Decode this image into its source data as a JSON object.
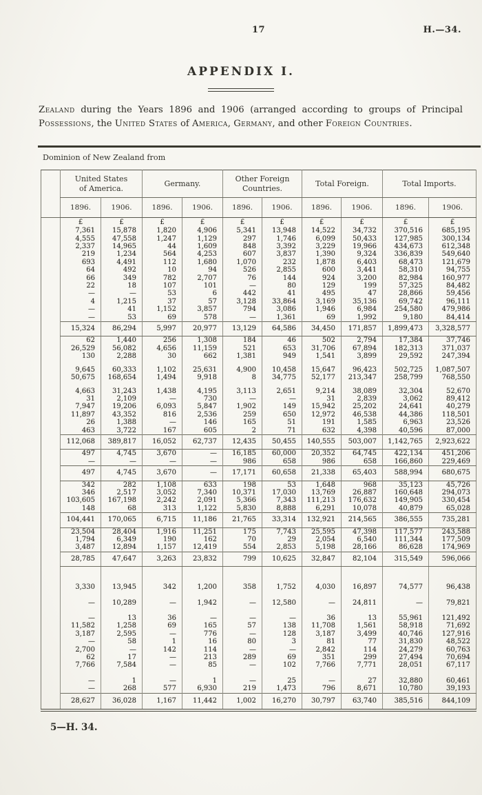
{
  "page": {
    "page_number": "17",
    "doc_ref": "H.—34.",
    "appendix_title": "APPENDIX I.",
    "footer": "5—H. 34."
  },
  "intro": {
    "segments": [
      {
        "t": "Zealand",
        "sc": true
      },
      {
        "t": " during the Years 1896 and 1906 (arranged according to groups of Principal ",
        "sc": false
      },
      {
        "t": "Possessions",
        "sc": true
      },
      {
        "t": ", the ",
        "sc": false
      },
      {
        "t": "United States",
        "sc": true
      },
      {
        "t": " of ",
        "sc": false
      },
      {
        "t": "America",
        "sc": true
      },
      {
        "t": ", ",
        "sc": false
      },
      {
        "t": "Germany",
        "sc": true
      },
      {
        "t": ", and other ",
        "sc": false
      },
      {
        "t": "Foreign Countries",
        "sc": true
      },
      {
        "t": ".",
        "sc": false
      }
    ]
  },
  "table": {
    "stub_label": "Dominion of New Zealand from",
    "groups": [
      {
        "lines": [
          "United States",
          "of America."
        ]
      },
      {
        "lines": [
          "Germany."
        ]
      },
      {
        "lines": [
          "Other Foreign",
          "Countries."
        ]
      },
      {
        "lines": [
          "Total Foreign."
        ]
      },
      {
        "lines": [
          "Total Imports."
        ]
      }
    ],
    "year_headers": [
      "1896.",
      "1906.",
      "1896.",
      "1906.",
      "1896.",
      "1906.",
      "1896.",
      "1906.",
      "1896.",
      "1906."
    ],
    "body": [
      {
        "type": "currency",
        "cells": [
          "£",
          "£",
          "£",
          "£",
          "£",
          "£",
          "£",
          "£",
          "£",
          "£"
        ]
      },
      {
        "type": "rows",
        "rows": [
          [
            "7,361",
            "15,878",
            "1,820",
            "4,906",
            "5,341",
            "13,948",
            "14,522",
            "34,732",
            "370,516",
            "685,195"
          ],
          [
            "4,555",
            "47,558",
            "1,247",
            "1,129",
            "297",
            "1,746",
            "6,099",
            "50,433",
            "127,985",
            "300,134"
          ],
          [
            "2,337",
            "14,965",
            "44",
            "1,609",
            "848",
            "3,392",
            "3,229",
            "19,966",
            "434,673",
            "612,348"
          ],
          [
            "219",
            "1,234",
            "564",
            "4,253",
            "607",
            "3,837",
            "1,390",
            "9,324",
            "336,839",
            "549,640"
          ],
          [
            "693",
            "4,491",
            "112",
            "1,680",
            "1,070",
            "232",
            "1,878",
            "6,403",
            "68,473",
            "121,679"
          ],
          [
            "64",
            "492",
            "10",
            "94",
            "526",
            "2,855",
            "600",
            "3,441",
            "58,310",
            "94,755"
          ],
          [
            "66",
            "349",
            "782",
            "2,707",
            "76",
            "144",
            "924",
            "3,200",
            "82,984",
            "160,977"
          ],
          [
            "22",
            "18",
            "107",
            "101",
            "—",
            "80",
            "129",
            "199",
            "57,325",
            "84,482"
          ],
          [
            "—",
            "—",
            "53",
            "6",
            "442",
            "41",
            "495",
            "47",
            "28,866",
            "59,456"
          ],
          [
            "4",
            "1,215",
            "37",
            "57",
            "3,128",
            "33,864",
            "3,169",
            "35,136",
            "69,742",
            "96,111"
          ],
          [
            "—",
            "41",
            "1,152",
            "3,857",
            "794",
            "3,086",
            "1,946",
            "6,984",
            "254,580",
            "479,986"
          ],
          [
            "—",
            "53",
            "69",
            "578",
            "—",
            "1,361",
            "69",
            "1,992",
            "9,180",
            "84,414"
          ]
        ]
      },
      {
        "type": "subtotal",
        "cells": [
          "15,324",
          "86,294",
          "5,997",
          "20,977",
          "13,129",
          "64,586",
          "34,450",
          "171,857",
          "1,899,473",
          "3,328,577"
        ]
      },
      {
        "type": "rows",
        "rows": [
          [
            "62",
            "1,440",
            "256",
            "1,308",
            "184",
            "46",
            "502",
            "2,794",
            "17,384",
            "37,746"
          ],
          [
            "26,529",
            "56,082",
            "4,656",
            "11,159",
            "521",
            "653",
            "31,706",
            "67,894",
            "182,313",
            "371,037"
          ],
          [
            "130",
            "2,288",
            "30",
            "662",
            "1,381",
            "949",
            "1,541",
            "3,899",
            "29,592",
            "247,394"
          ]
        ]
      },
      {
        "type": "gap",
        "h": 8
      },
      {
        "type": "rows",
        "rows": [
          [
            "9,645",
            "60,333",
            "1,102",
            "25,631",
            "4,900",
            "10,458",
            "15,647",
            "96,423",
            "502,725",
            "1,087,507"
          ],
          [
            "50,675",
            "168,654",
            "1,494",
            "9,918",
            "8",
            "34,775",
            "52,177",
            "213,347",
            "258,799",
            "768,550"
          ]
        ]
      },
      {
        "type": "gap",
        "h": 8
      },
      {
        "type": "rows",
        "rows": [
          [
            "4,663",
            "31,243",
            "1,438",
            "4,195",
            "3,113",
            "2,651",
            "9,214",
            "38,089",
            "32,304",
            "52,670"
          ],
          [
            "31",
            "2,109",
            "—",
            "730",
            "—",
            "—",
            "31",
            "2,839",
            "3,062",
            "89,412"
          ],
          [
            "7,947",
            "19,206",
            "6,093",
            "5,847",
            "1,902",
            "149",
            "15,942",
            "25,202",
            "24,641",
            "40,279"
          ],
          [
            "11,897",
            "43,352",
            "816",
            "2,536",
            "259",
            "650",
            "12,972",
            "46,538",
            "44,386",
            "118,501"
          ],
          [
            "26",
            "1,388",
            "—",
            "146",
            "165",
            "51",
            "191",
            "1,585",
            "6,963",
            "23,526"
          ],
          [
            "463",
            "3,722",
            "167",
            "605",
            "2",
            "71",
            "632",
            "4,398",
            "40,596",
            "87,000"
          ]
        ]
      },
      {
        "type": "subtotal",
        "cells": [
          "112,068",
          "389,817",
          "16,052",
          "62,737",
          "12,435",
          "50,455",
          "140,555",
          "503,007",
          "1,142,765",
          "2,923,622"
        ]
      },
      {
        "type": "rows",
        "rows": [
          [
            "497",
            "4,745",
            "3,670",
            "—",
            "16,185",
            "60,000",
            "20,352",
            "64,745",
            "422,134",
            "451,206"
          ],
          [
            "—",
            "—",
            "—",
            "—",
            "986",
            "658",
            "986",
            "658",
            "166,860",
            "229,469"
          ]
        ]
      },
      {
        "type": "subtotal",
        "cells": [
          "497",
          "4,745",
          "3,670",
          "—",
          "17,171",
          "60,658",
          "21,338",
          "65,403",
          "588,994",
          "680,675"
        ]
      },
      {
        "type": "rows",
        "rows": [
          [
            "342",
            "282",
            "1,108",
            "633",
            "198",
            "53",
            "1,648",
            "968",
            "35,123",
            "45,726"
          ],
          [
            "346",
            "2,517",
            "3,052",
            "7,340",
            "10,371",
            "17,030",
            "13,769",
            "26,887",
            "160,648",
            "294,073"
          ],
          [
            "103,605",
            "167,198",
            "2,242",
            "2,091",
            "5,366",
            "7,343",
            "111,213",
            "176,632",
            "149,905",
            "330,454"
          ],
          [
            "148",
            "68",
            "313",
            "1,122",
            "5,830",
            "8,888",
            "6,291",
            "10,078",
            "40,879",
            "65,028"
          ]
        ]
      },
      {
        "type": "subtotal",
        "cells": [
          "104,441",
          "170,065",
          "6,715",
          "11,186",
          "21,765",
          "33,314",
          "132,921",
          "214,565",
          "386,555",
          "735,281"
        ]
      },
      {
        "type": "rows",
        "rows": [
          [
            "23,504",
            "28,404",
            "1,916",
            "11,251",
            "175",
            "7,743",
            "25,595",
            "47,398",
            "117,577",
            "243,588"
          ],
          [
            "1,794",
            "6,349",
            "190",
            "162",
            "70",
            "29",
            "2,054",
            "6,540",
            "111,344",
            "177,509"
          ],
          [
            "3,487",
            "12,894",
            "1,157",
            "12,419",
            "554",
            "2,853",
            "5,198",
            "28,166",
            "86,628",
            "174,969"
          ]
        ]
      },
      {
        "type": "subtotal",
        "cells": [
          "28,785",
          "47,647",
          "3,263",
          "23,832",
          "799",
          "10,625",
          "32,847",
          "82,104",
          "315,549",
          "596,066"
        ]
      },
      {
        "type": "gap",
        "h": 24
      },
      {
        "type": "rows",
        "rows": [
          [
            "3,330",
            "13,945",
            "342",
            "1,200",
            "358",
            "1,752",
            "4,030",
            "16,897",
            "74,577",
            "96,438"
          ]
        ]
      },
      {
        "type": "gap",
        "h": 11
      },
      {
        "type": "rows",
        "rows": [
          [
            "—",
            "10,289",
            "—",
            "1,942",
            "—",
            "12,580",
            "—",
            "24,811",
            "—",
            "79,821"
          ]
        ]
      },
      {
        "type": "gap",
        "h": 11
      },
      {
        "type": "rows",
        "rows": [
          [
            "—",
            "13",
            "36",
            "—",
            "—",
            "—",
            "36",
            "13",
            "55,961",
            "121,492"
          ],
          [
            "11,582",
            "1,258",
            "69",
            "165",
            "57",
            "138",
            "11,708",
            "1,561",
            "58,918",
            "71,692"
          ],
          [
            "3,187",
            "2,595",
            "—",
            "776",
            "—",
            "128",
            "3,187",
            "3,499",
            "40,746",
            "127,916"
          ],
          [
            "—",
            "58",
            "1",
            "16",
            "80",
            "3",
            "81",
            "77",
            "31,830",
            "48,522"
          ],
          [
            "2,700",
            "—",
            "142",
            "114",
            "—",
            "—",
            "2,842",
            "114",
            "24,279",
            "60,763"
          ],
          [
            "62",
            "17",
            "—",
            "213",
            "289",
            "69",
            "351",
            "299",
            "27,494",
            "70,694"
          ],
          [
            "7,766",
            "7,584",
            "—",
            "85",
            "—",
            "102",
            "7,766",
            "7,771",
            "28,051",
            "67,117"
          ]
        ]
      },
      {
        "type": "gap",
        "h": 11
      },
      {
        "type": "rows",
        "rows": [
          [
            "—",
            "1",
            "—",
            "1",
            "—",
            "25",
            "—",
            "27",
            "32,880",
            "60,461"
          ],
          [
            "—",
            "268",
            "577",
            "6,930",
            "219",
            "1,473",
            "796",
            "8,671",
            "10,780",
            "39,193"
          ]
        ]
      },
      {
        "type": "total",
        "cells": [
          "28,627",
          "36,028",
          "1,167",
          "11,442",
          "1,002",
          "16,270",
          "30,797",
          "63,740",
          "385,516",
          "844,109"
        ]
      }
    ]
  }
}
